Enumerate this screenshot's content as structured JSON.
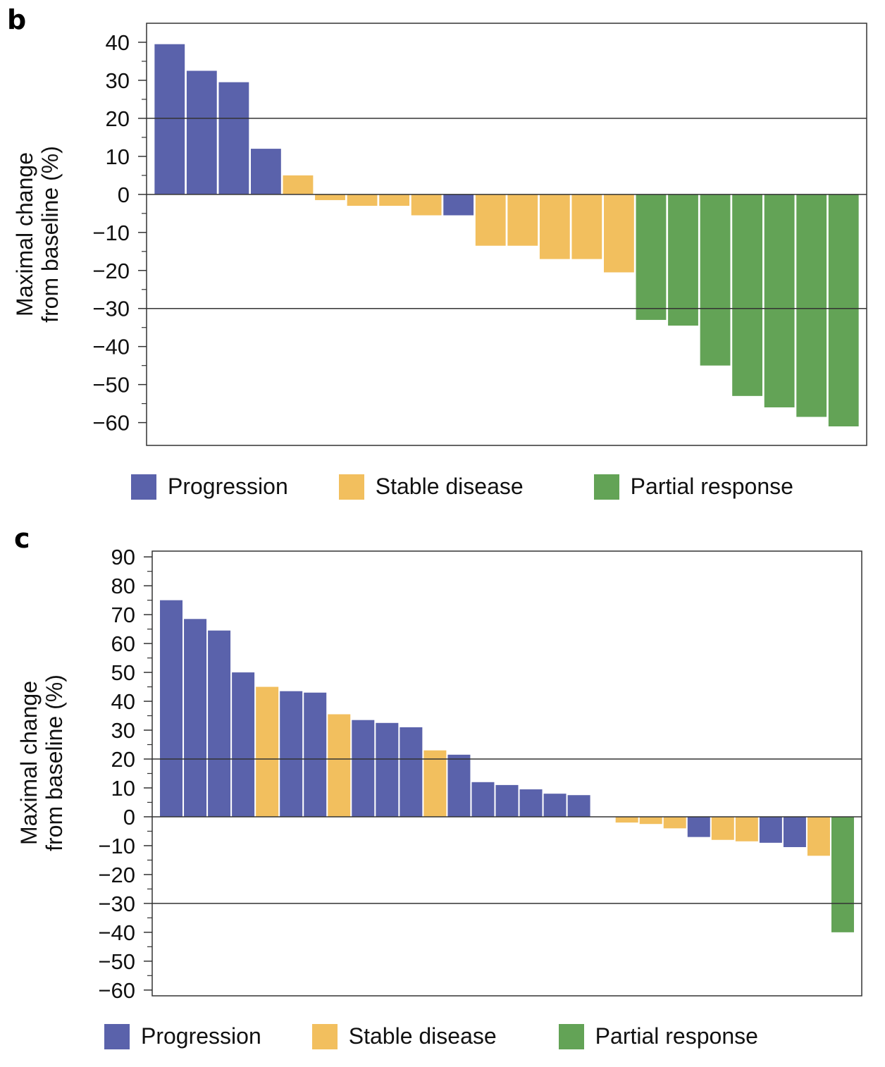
{
  "colors": {
    "progression": "#5a62ab",
    "stable": "#f2bf5e",
    "partial": "#63a356",
    "axis": "#333333"
  },
  "legend": [
    {
      "key": "progression",
      "label": "Progression"
    },
    {
      "key": "stable",
      "label": "Stable disease"
    },
    {
      "key": "partial",
      "label": "Partial response"
    }
  ],
  "chart_data": [
    {
      "panel": "b",
      "type": "bar",
      "ylabel_line1": "Maximal change",
      "ylabel_line2": "from baseline (%)",
      "xlabel": "",
      "ylim": [
        -66,
        45
      ],
      "yticks": [
        40,
        30,
        20,
        10,
        0,
        -10,
        -20,
        -30,
        -40,
        -50,
        -60
      ],
      "reference_lines": [
        20,
        0,
        -30
      ],
      "grid": false,
      "legend_placement": "bottom",
      "values": [
        39.5,
        32.5,
        29.5,
        12,
        5,
        -1.5,
        -3,
        -3,
        -5.5,
        -5.5,
        -13.5,
        -13.5,
        -17,
        -17,
        -20.5,
        -33,
        -34.5,
        -45,
        -53,
        -56,
        -58.5,
        -61
      ],
      "responses": [
        "progression",
        "progression",
        "progression",
        "progression",
        "stable",
        "stable",
        "stable",
        "stable",
        "stable",
        "progression",
        "stable",
        "stable",
        "stable",
        "stable",
        "stable",
        "partial",
        "partial",
        "partial",
        "partial",
        "partial",
        "partial",
        "partial"
      ]
    },
    {
      "panel": "c",
      "type": "bar",
      "ylabel_line1": "Maximal change",
      "ylabel_line2": "from baseline (%)",
      "xlabel": "",
      "ylim": [
        -62,
        92
      ],
      "yticks": [
        90,
        80,
        70,
        60,
        50,
        40,
        30,
        20,
        10,
        0,
        -10,
        -20,
        -30,
        -40,
        -50,
        -60
      ],
      "reference_lines": [
        20,
        0,
        -30
      ],
      "grid": false,
      "legend_placement": "bottom",
      "values": [
        75,
        68.5,
        64.5,
        50,
        45,
        43.5,
        43,
        35.5,
        33.5,
        32.5,
        31,
        23,
        21.5,
        12,
        11,
        9.5,
        8,
        7.5,
        0,
        -2,
        -2.5,
        -4,
        -7,
        -8,
        -8.5,
        -9,
        -10.5,
        -13.5,
        -40
      ],
      "responses": [
        "progression",
        "progression",
        "progression",
        "progression",
        "stable",
        "progression",
        "progression",
        "stable",
        "progression",
        "progression",
        "progression",
        "stable",
        "progression",
        "progression",
        "progression",
        "progression",
        "progression",
        "progression",
        "stable",
        "stable",
        "stable",
        "stable",
        "progression",
        "stable",
        "stable",
        "progression",
        "progression",
        "stable",
        "partial"
      ]
    }
  ]
}
